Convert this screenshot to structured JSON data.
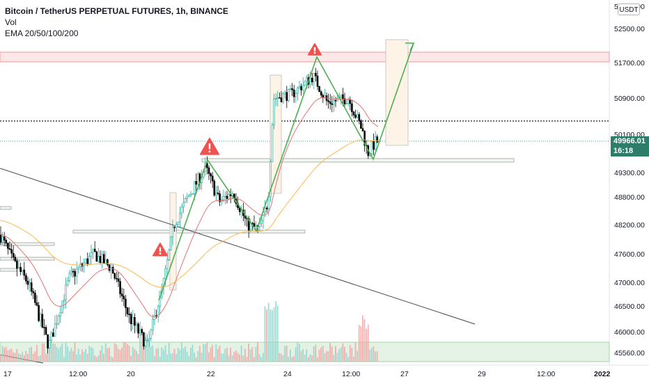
{
  "legend": {
    "title": "Bitcoin / TetherUS PERPETUAL FUTURES, 1h, BINANCE",
    "vol": "Vol",
    "ema": "EMA 20/50/100/200"
  },
  "currency_button": "USDT",
  "price_badge": {
    "price": "49966.01",
    "countdown": "16:18"
  },
  "colors": {
    "up": "#26a69a",
    "down": "#000000",
    "ema20": "#e57373",
    "ema50": "#ffb74d",
    "pattern": "#4caf50",
    "warning": "#ef5350",
    "trendline": "#434651",
    "axis_text": "#131722"
  },
  "chart_data": {
    "type": "candlestick",
    "title": "Bitcoin / TetherUS PERPETUAL FUTURES, 1h, BINANCE",
    "y_ticks": [
      "52500.00",
      "51700.00",
      "50900.00",
      "50100.00",
      "49300.00",
      "48800.00",
      "48200.00",
      "47600.00",
      "47000.00",
      "46500.00",
      "46000.00",
      "45560.00"
    ],
    "y_top_label": "53000.00",
    "x_ticks": [
      "17",
      "12:00",
      "20",
      "22",
      "24",
      "12:00",
      "27",
      "29",
      "12:00",
      "2022"
    ],
    "current_price": 49966.01,
    "series": [
      {
        "name": "EMA 20",
        "values": []
      },
      {
        "name": "EMA 50",
        "values": []
      }
    ],
    "zigzag_pattern": [
      {
        "x": "Dec 21 12:00",
        "y": 47400
      },
      {
        "x": "Dec 22 00:00",
        "y": 49500
      },
      {
        "x": "Dec 23 00:00",
        "y": 48100
      },
      {
        "x": "Dec 25 06:00",
        "y": 51800
      },
      {
        "x": "Dec 26 06:00",
        "y": 49600
      },
      {
        "x": "Dec 27 06:00",
        "y": 52500
      }
    ]
  }
}
